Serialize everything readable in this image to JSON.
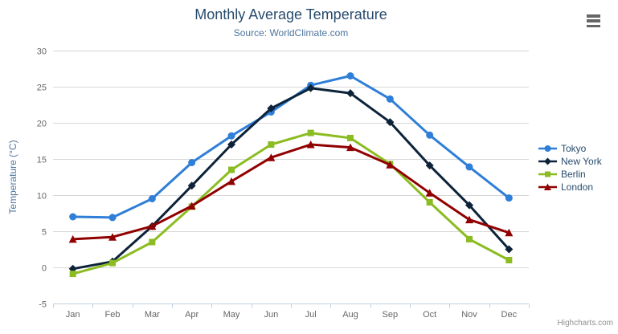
{
  "header": {
    "title": "Monthly Average Temperature",
    "subtitle": "Source: WorldClimate.com",
    "menu_icon": "hamburger-menu"
  },
  "credits": "Highcharts.com",
  "chart_data": {
    "type": "line",
    "categories": [
      "Jan",
      "Feb",
      "Mar",
      "Apr",
      "May",
      "Jun",
      "Jul",
      "Aug",
      "Sep",
      "Oct",
      "Nov",
      "Dec"
    ],
    "series": [
      {
        "name": "Tokyo",
        "color": "#2f7ed8",
        "marker": "circle",
        "values": [
          7.0,
          6.9,
          9.5,
          14.5,
          18.2,
          21.5,
          25.2,
          26.5,
          23.3,
          18.3,
          13.9,
          9.6
        ]
      },
      {
        "name": "New York",
        "color": "#0d233a",
        "marker": "diamond",
        "values": [
          -0.2,
          0.8,
          5.7,
          11.3,
          17.0,
          22.0,
          24.8,
          24.1,
          20.1,
          14.1,
          8.6,
          2.5
        ]
      },
      {
        "name": "Berlin",
        "color": "#8bbc21",
        "marker": "square",
        "values": [
          -0.9,
          0.6,
          3.5,
          8.4,
          13.5,
          17.0,
          18.6,
          17.9,
          14.3,
          9.0,
          3.9,
          1.0
        ]
      },
      {
        "name": "London",
        "color": "#910000",
        "marker": "triangle",
        "values": [
          3.9,
          4.2,
          5.7,
          8.5,
          11.9,
          15.2,
          17.0,
          16.6,
          14.2,
          10.3,
          6.6,
          4.8
        ]
      }
    ],
    "title": "Monthly Average Temperature",
    "xlabel": "",
    "ylabel": "Temperature (°C)",
    "ylim": [
      -5,
      30
    ],
    "ytick_step": 5,
    "grid": true,
    "legend_position": "right",
    "style": {
      "grid_color": "#d8d8d8",
      "axis_color": "#c0d0e0",
      "tick_label_color": "#666666",
      "axis_title_color": "#4d759e",
      "title_color": "#274b6d",
      "subtitle_color": "#4d759e"
    }
  }
}
